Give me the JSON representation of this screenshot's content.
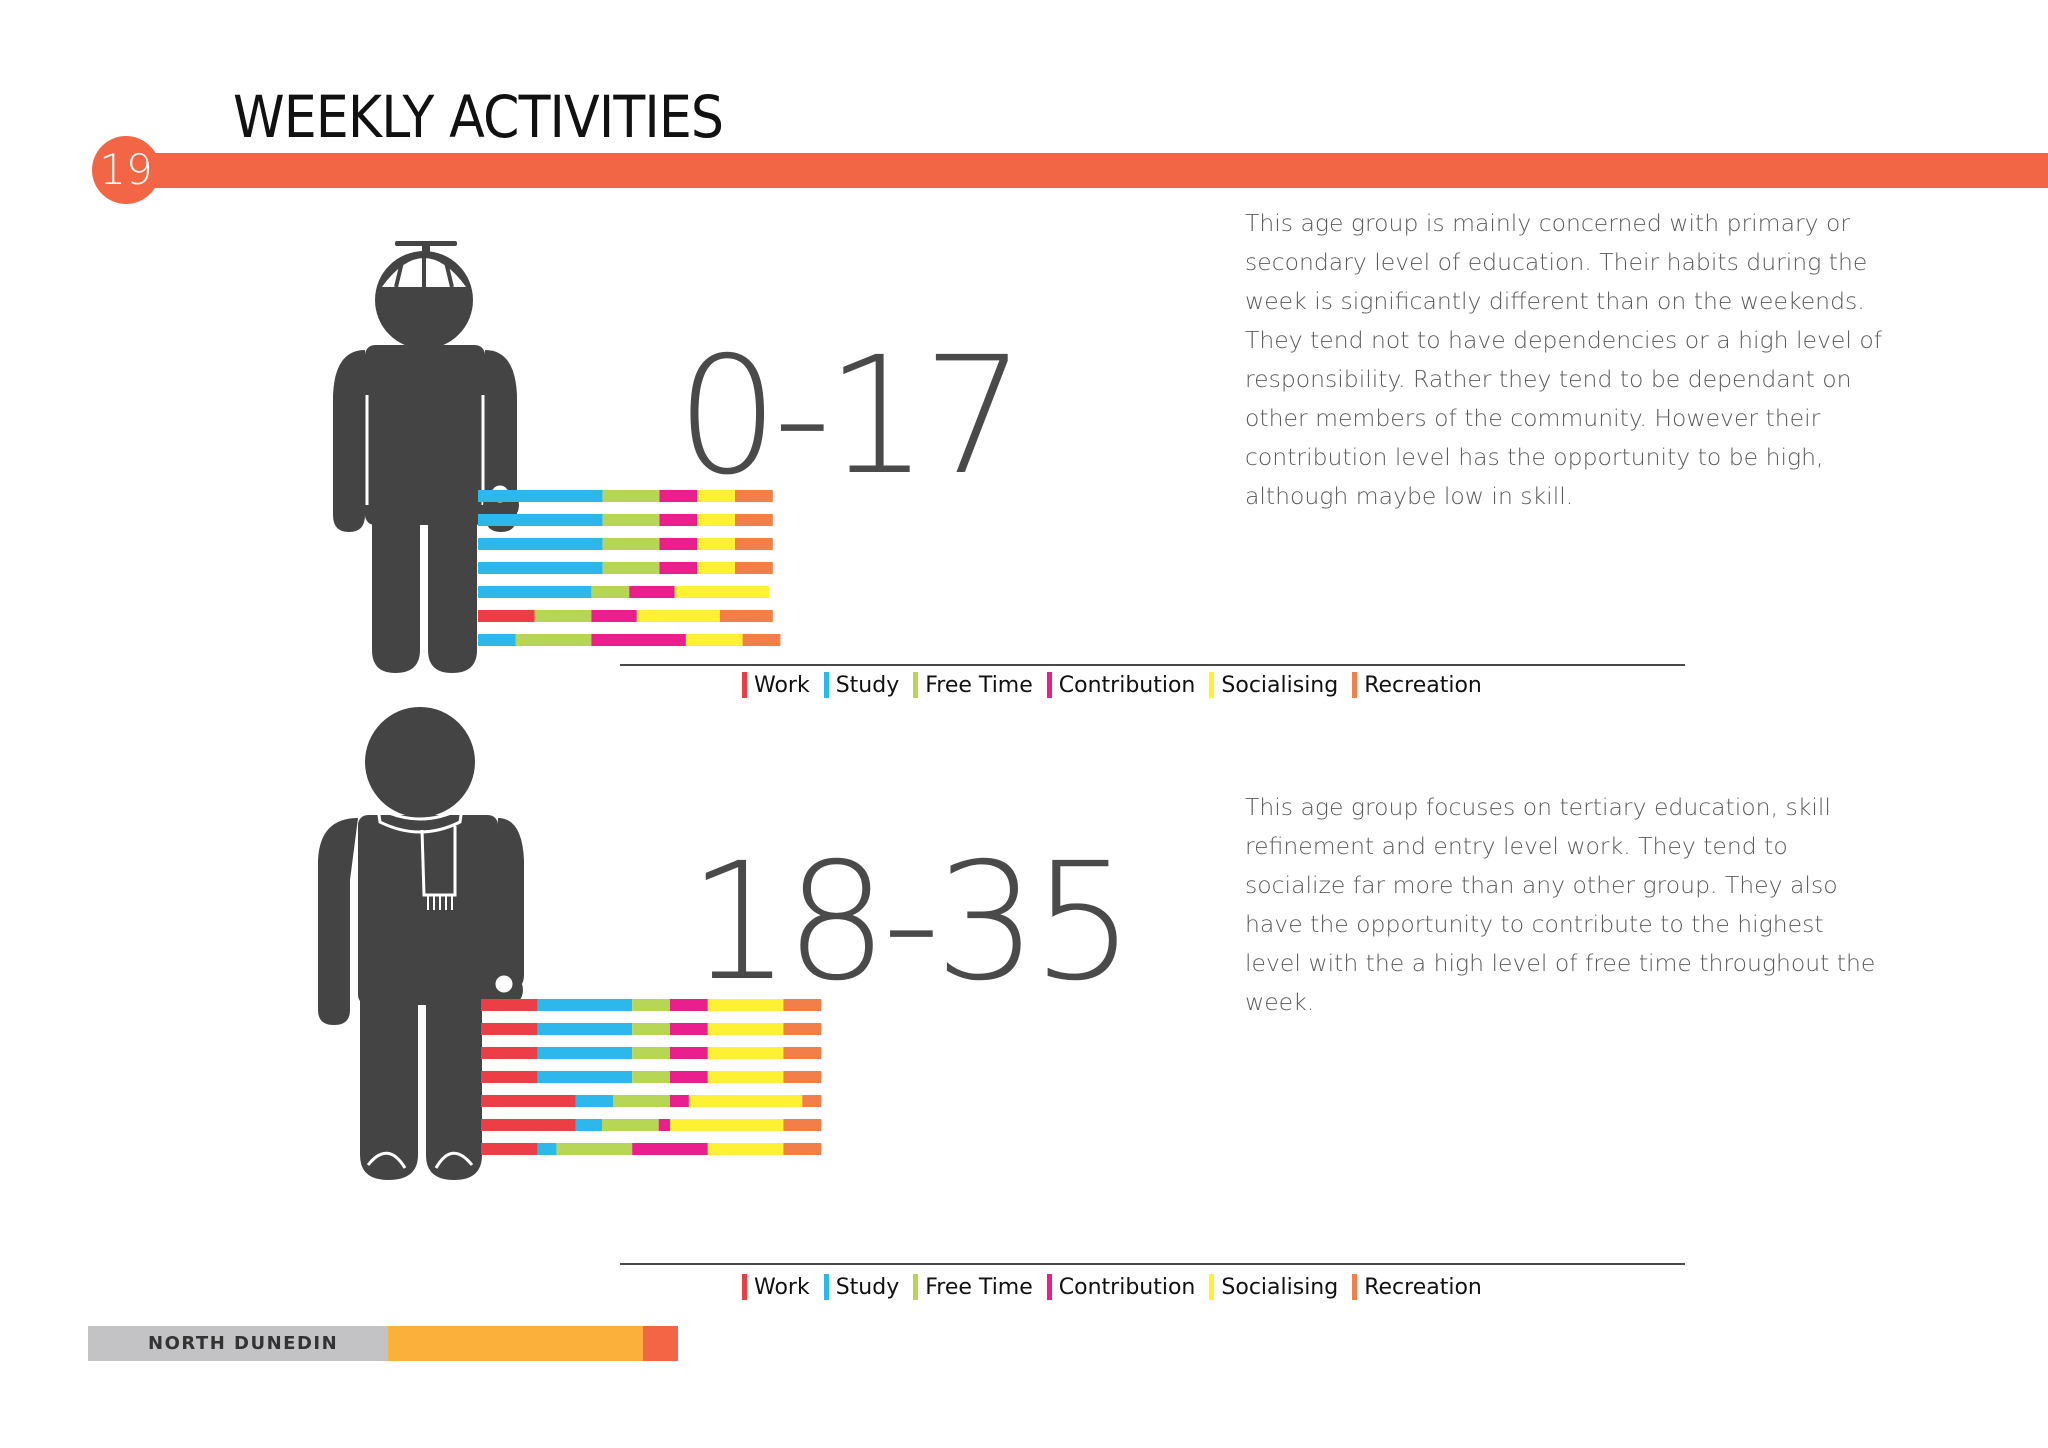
{
  "page": {
    "title": "WEEKLY ACTIVITIES",
    "page_number": "19",
    "footer_label": "NORTH DUNEDIN",
    "brand_color": "#f26645",
    "footer_colors": [
      "#c3c2c4",
      "#fbb03b",
      "#f26645"
    ]
  },
  "colors": {
    "Work": "#ed3e46",
    "Study": "#2db8eb",
    "Free Time": "#b8d655",
    "Contribution": "#ea1e8c",
    "Socialising": "#fef033",
    "Recreation": "#f27e48"
  },
  "sections": [
    {
      "age_label": "0-17",
      "description": "This age group is mainly concerned with primary or secondary level of education. Their habits during the week is significantly different than on the weekends. They tend not to have dependencies or a high level of responsibility. Rather they tend to be dependant on other members of the community. However their contribution level has the opportunity to be high, although maybe low in skill.",
      "figure_icon": "child-propeller-cap-icon",
      "legend": [
        "Work",
        "Study",
        "Free Time",
        "Contribution",
        "Socialising",
        "Recreation"
      ]
    },
    {
      "age_label": "18-35",
      "description": "This age group focuses on tertiary education, skill refinement and entry level work. They tend to socialize far more than any other group. They also have the opportunity to contribute to the highest level with the a high level of free time throughout the week.",
      "figure_icon": "adult-scarf-icon",
      "legend": [
        "Work",
        "Study",
        "Free Time",
        "Contribution",
        "Socialising",
        "Recreation"
      ]
    }
  ],
  "chart_data": [
    {
      "type": "bar",
      "orientation": "horizontal",
      "stacked": true,
      "legend_placement": "bottom",
      "categories": [
        "row 1",
        "row 2",
        "row 3",
        "row 4",
        "row 5",
        "row 6",
        "row 7"
      ],
      "series": [
        {
          "name": "Work",
          "values": [
            0,
            0,
            0,
            0,
            0,
            15,
            0
          ]
        },
        {
          "name": "Study",
          "values": [
            33,
            33,
            33,
            33,
            30,
            0,
            10
          ]
        },
        {
          "name": "Free Time",
          "values": [
            15,
            15,
            15,
            15,
            10,
            15,
            20
          ]
        },
        {
          "name": "Contribution",
          "values": [
            10,
            10,
            10,
            10,
            12,
            12,
            25
          ]
        },
        {
          "name": "Socialising",
          "values": [
            10,
            10,
            10,
            10,
            25,
            22,
            15
          ]
        },
        {
          "name": "Recreation",
          "values": [
            10,
            10,
            10,
            10,
            0,
            14,
            10
          ]
        }
      ]
    },
    {
      "type": "bar",
      "orientation": "horizontal",
      "stacked": true,
      "legend_placement": "bottom",
      "categories": [
        "row 1",
        "row 2",
        "row 3",
        "row 4",
        "row 5",
        "row 6",
        "row 7"
      ],
      "series": [
        {
          "name": "Work",
          "values": [
            15,
            15,
            15,
            15,
            25,
            25,
            15
          ]
        },
        {
          "name": "Study",
          "values": [
            25,
            25,
            25,
            25,
            10,
            7,
            5
          ]
        },
        {
          "name": "Free Time",
          "values": [
            10,
            10,
            10,
            10,
            15,
            15,
            20
          ]
        },
        {
          "name": "Contribution",
          "values": [
            10,
            10,
            10,
            10,
            5,
            3,
            20
          ]
        },
        {
          "name": "Socialising",
          "values": [
            20,
            20,
            20,
            20,
            30,
            30,
            20
          ]
        },
        {
          "name": "Recreation",
          "values": [
            10,
            10,
            10,
            10,
            5,
            10,
            10
          ]
        }
      ]
    }
  ]
}
